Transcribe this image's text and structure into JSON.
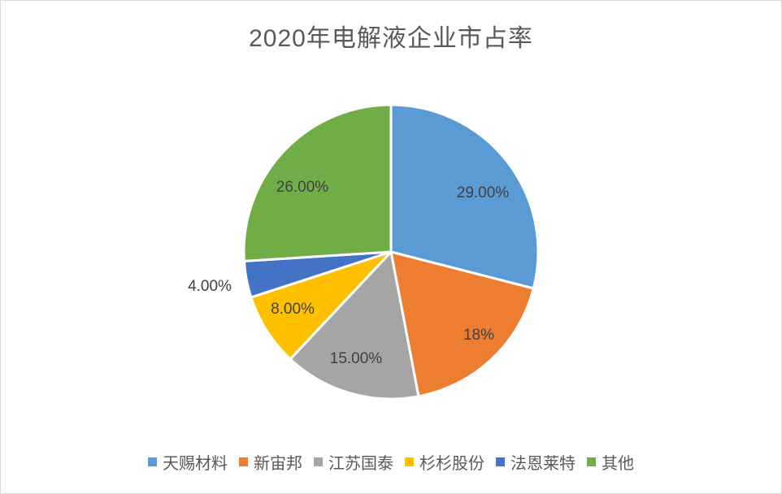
{
  "chart_data": {
    "type": "pie",
    "title": "2020年电解液企业市占率",
    "categories": [
      "天赐材料",
      "新宙邦",
      "江苏国泰",
      "杉杉股份",
      "法恩莱特",
      "其他"
    ],
    "values": [
      29,
      18,
      15,
      8,
      4,
      26
    ],
    "data_labels": [
      "29.00%",
      "18%",
      "15.00%",
      "8.00%",
      "4.00%",
      "26.00%"
    ],
    "colors": [
      "#5B9BD5",
      "#ED7D31",
      "#A5A5A5",
      "#FFC000",
      "#4472C4",
      "#70AD47"
    ],
    "legend_position": "bottom",
    "start_angle": "top, clockwise"
  }
}
